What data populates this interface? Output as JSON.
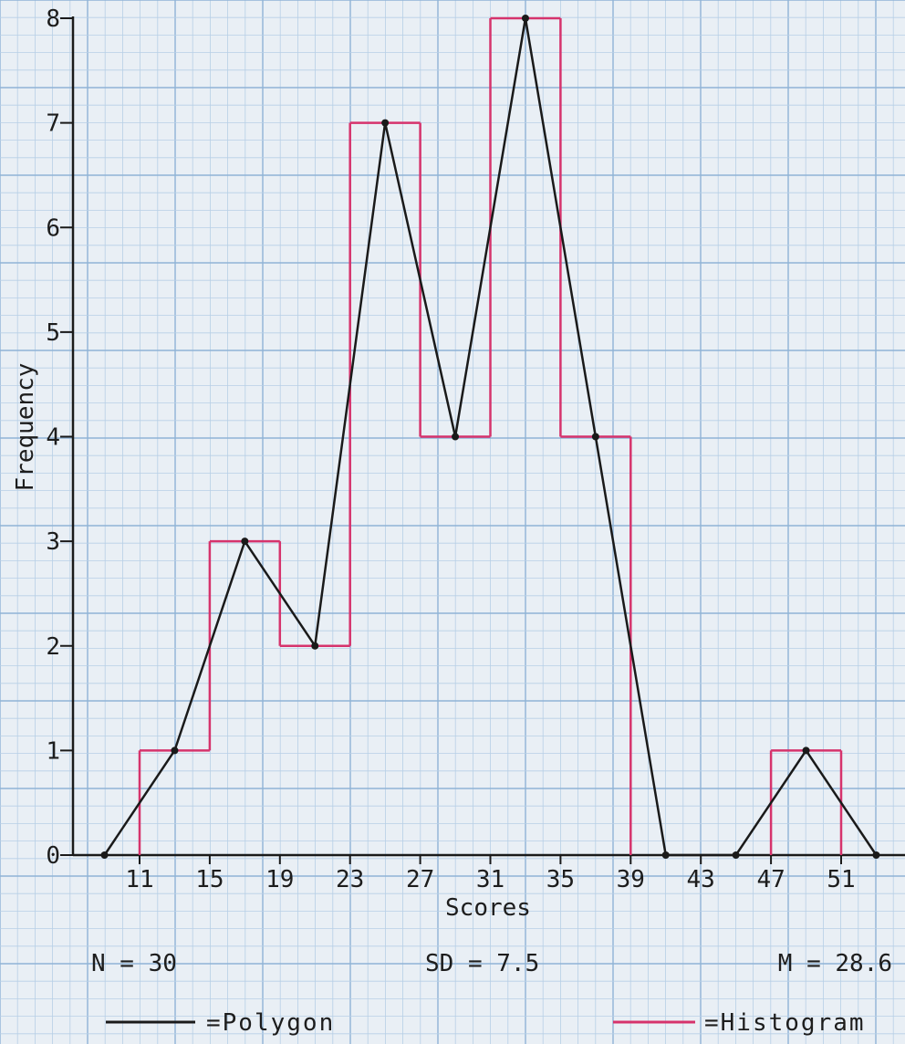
{
  "chart_data": {
    "type": "histogram with frequency polygon",
    "xlabel": "Scores",
    "ylabel": "Frequency",
    "ylim": [
      0,
      8
    ],
    "yticks": [
      "0",
      "1",
      "2",
      "3",
      "4",
      "5",
      "6",
      "7",
      "8"
    ],
    "xticks": [
      "11",
      "15",
      "19",
      "23",
      "27",
      "31",
      "35",
      "39",
      "43",
      "47",
      "51"
    ],
    "grid": true,
    "histogram": {
      "name": "Histogram",
      "color": "#d6336c",
      "bins": [
        {
          "from": 11,
          "to": 15,
          "value": 1
        },
        {
          "from": 15,
          "to": 19,
          "value": 3
        },
        {
          "from": 19,
          "to": 23,
          "value": 2
        },
        {
          "from": 23,
          "to": 27,
          "value": 7
        },
        {
          "from": 27,
          "to": 31,
          "value": 4
        },
        {
          "from": 31,
          "to": 35,
          "value": 8
        },
        {
          "from": 35,
          "to": 39,
          "value": 4
        },
        {
          "from": 39,
          "to": 43,
          "value": 0
        },
        {
          "from": 43,
          "to": 47,
          "value": 0
        },
        {
          "from": 47,
          "to": 51,
          "value": 1
        }
      ]
    },
    "polygon": {
      "name": "Polygon",
      "color": "#1a1a1a",
      "x": [
        9,
        13,
        17,
        21,
        25,
        29,
        33,
        37,
        41,
        45,
        49,
        53
      ],
      "y": [
        0,
        1,
        3,
        2,
        7,
        4,
        8,
        4,
        0,
        0,
        1,
        0
      ]
    },
    "stats": {
      "n": "N = 30",
      "sd": "SD = 7.5",
      "m": "M = 28.6"
    },
    "legend": {
      "polygon_label": "=Polygon",
      "histogram_label": "=Histogram"
    }
  }
}
